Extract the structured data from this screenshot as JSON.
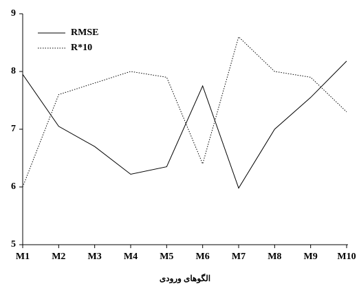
{
  "chart_data": {
    "type": "line",
    "x_label": "الگوهای ورودی",
    "categories": [
      "M1",
      "M2",
      "M3",
      "M4",
      "M5",
      "M6",
      "M7",
      "M8",
      "M9",
      "M10"
    ],
    "series": [
      {
        "name": "RMSE",
        "color": "#000000",
        "line_style": "solid",
        "values": [
          7.95,
          7.05,
          6.7,
          6.22,
          6.35,
          7.75,
          5.98,
          7.0,
          7.55,
          8.18
        ]
      },
      {
        "name": "R*10",
        "color": "#000000",
        "line_style": "dotted",
        "values": [
          6.0,
          7.6,
          7.8,
          8.0,
          7.9,
          6.4,
          8.6,
          8.0,
          7.9,
          7.3
        ]
      }
    ],
    "ylim": [
      5,
      9
    ],
    "yticks": [
      5,
      6,
      7,
      8,
      9
    ],
    "grid": false,
    "legend": "upper left"
  }
}
